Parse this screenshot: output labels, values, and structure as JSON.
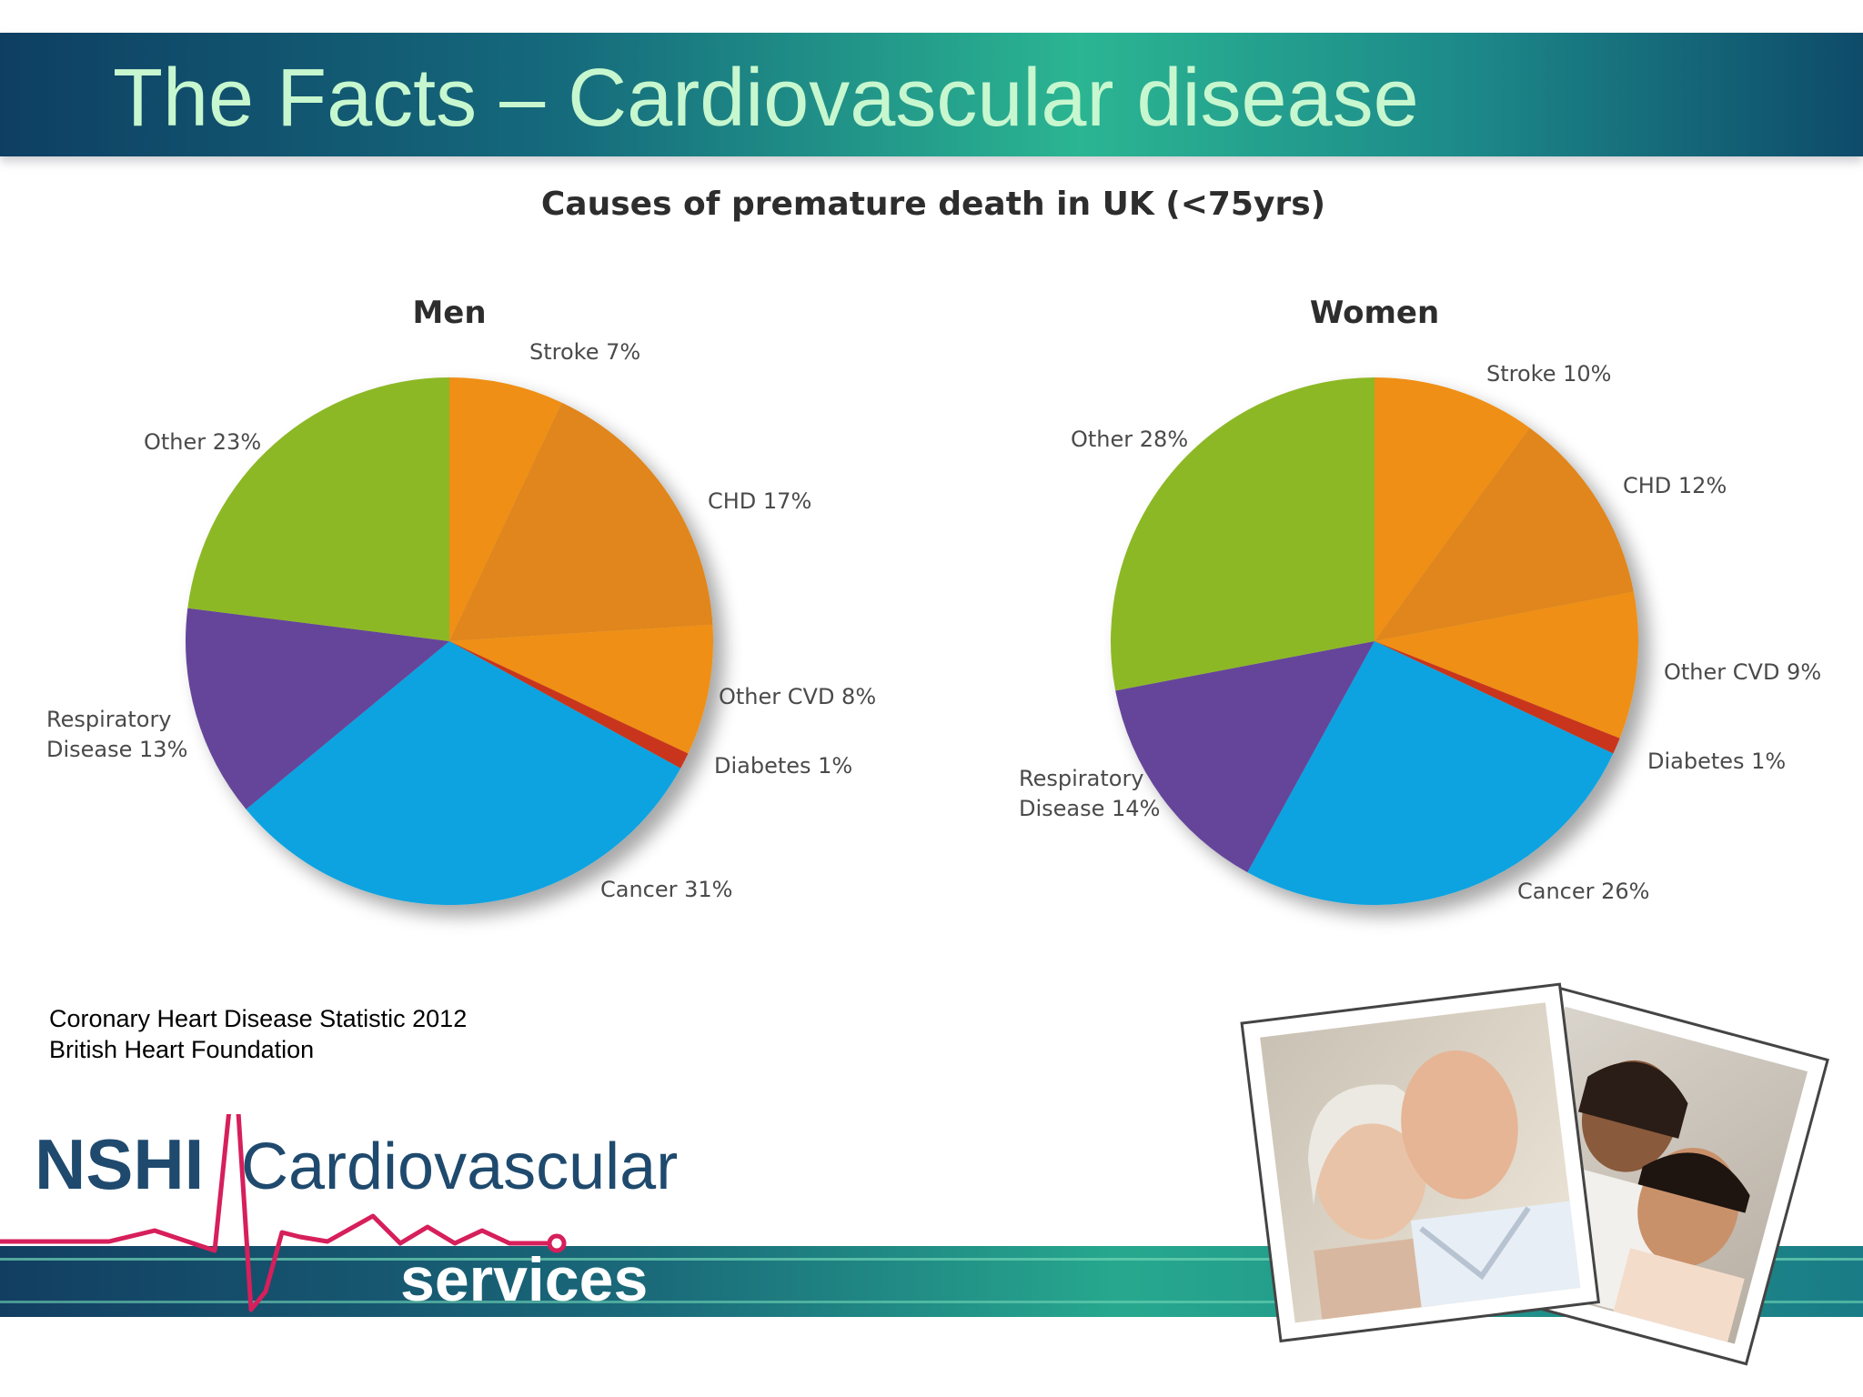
{
  "slide_title": "The Facts – Cardiovascular disease",
  "chart_heading": "Causes of premature death in UK (<75yrs)",
  "chart_data": [
    {
      "type": "pie",
      "title": "Men",
      "slices": [
        {
          "label": "Stroke",
          "value": 7,
          "value_label": "7%",
          "color": "#ef8f12"
        },
        {
          "label": "CHD",
          "value": 17,
          "value_label": "17%",
          "color": "#e0861a"
        },
        {
          "label": "Other CVD",
          "value": 8,
          "value_label": "8%",
          "color": "#ef8f12"
        },
        {
          "label": "Diabetes",
          "value": 1,
          "value_label": "1%",
          "color": "#c8341b"
        },
        {
          "label": "Cancer",
          "value": 31,
          "value_label": "31%",
          "color": "#0aa3e0"
        },
        {
          "label": "Respiratory Disease",
          "value": 13,
          "value_label": "13%",
          "color": "#65449a"
        },
        {
          "label": "Other",
          "value": 23,
          "value_label": "23%",
          "color": "#8db826"
        }
      ]
    },
    {
      "type": "pie",
      "title": "Women",
      "slices": [
        {
          "label": "Stroke",
          "value": 10,
          "value_label": "10%",
          "color": "#ef8f12"
        },
        {
          "label": "CHD",
          "value": 12,
          "value_label": "12%",
          "color": "#e0861a"
        },
        {
          "label": "Other CVD",
          "value": 9,
          "value_label": "9%",
          "color": "#ef8f12"
        },
        {
          "label": "Diabetes",
          "value": 1,
          "value_label": "1%",
          "color": "#c8341b"
        },
        {
          "label": "Cancer",
          "value": 26,
          "value_label": "26%",
          "color": "#0aa3e0"
        },
        {
          "label": "Respiratory Disease",
          "value": 14,
          "value_label": "14%",
          "color": "#65449a"
        },
        {
          "label": "Other",
          "value": 28,
          "value_label": "28%",
          "color": "#8db826"
        }
      ]
    }
  ],
  "source": {
    "line1": "Coronary Heart Disease Statistic 2012",
    "line2": "British Heart Foundation"
  },
  "logo": {
    "name": "NSHI",
    "word": "Cardiovascular",
    "subword": "services"
  },
  "colors": {
    "title_text": "#c7f7cf",
    "logo_navy": "#1f4a6e",
    "ecg_line": "#d61f5b"
  }
}
